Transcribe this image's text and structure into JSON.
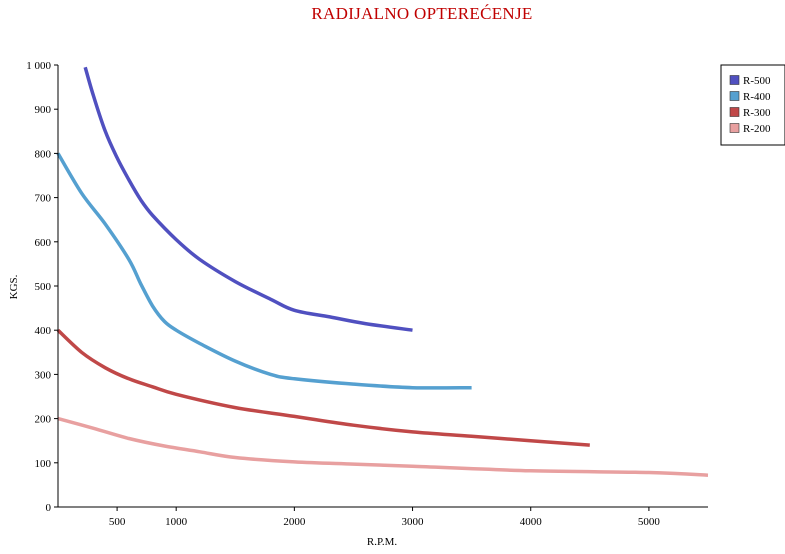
{
  "chart_data": {
    "type": "line",
    "title": "RADIJALNO OPTEREĆENJE",
    "xlabel": "R.P.M.",
    "ylabel": "KGS.",
    "xlim": [
      0,
      5500
    ],
    "ylim": [
      0,
      1000
    ],
    "xticks": [
      500,
      1000,
      2000,
      3000,
      4000,
      5000
    ],
    "xtick_labels": [
      "500",
      "1000",
      "2000",
      "3000",
      "4000",
      "5000"
    ],
    "yticks": [
      0,
      100,
      200,
      300,
      400,
      500,
      600,
      700,
      800,
      900,
      1000
    ],
    "ytick_labels": [
      "0",
      "100",
      "200",
      "300",
      "400",
      "500",
      "600",
      "700",
      "800",
      "900",
      "1 000"
    ],
    "grid": false,
    "legend_position": "top-right",
    "series": [
      {
        "name": "R-500",
        "color": "#5050c0",
        "x": [
          230,
          300,
          400,
          500,
          600,
          700,
          800,
          1000,
          1200,
          1500,
          1800,
          2000,
          2300,
          2600,
          3000
        ],
        "y": [
          995,
          930,
          850,
          790,
          740,
          695,
          660,
          605,
          560,
          510,
          470,
          445,
          430,
          415,
          400
        ]
      },
      {
        "name": "R-400",
        "color": "#55a0d0",
        "x": [
          0,
          200,
          400,
          600,
          700,
          800,
          900,
          1000,
          1200,
          1500,
          1800,
          2000,
          2500,
          3000,
          3500
        ],
        "y": [
          800,
          710,
          640,
          560,
          505,
          455,
          420,
          400,
          370,
          330,
          300,
          290,
          278,
          270,
          270
        ]
      },
      {
        "name": "R-300",
        "color": "#c04848",
        "x": [
          0,
          200,
          400,
          600,
          800,
          1000,
          1500,
          2000,
          2500,
          3000,
          3500,
          4000,
          4500
        ],
        "y": [
          400,
          350,
          315,
          290,
          272,
          255,
          225,
          205,
          185,
          170,
          160,
          150,
          140
        ]
      },
      {
        "name": "R-200",
        "color": "#e8a0a0",
        "x": [
          0,
          300,
          600,
          900,
          1200,
          1500,
          2000,
          2500,
          3000,
          4000,
          5000,
          5500
        ],
        "y": [
          200,
          178,
          155,
          138,
          125,
          112,
          102,
          97,
          92,
          82,
          78,
          72
        ]
      }
    ]
  }
}
